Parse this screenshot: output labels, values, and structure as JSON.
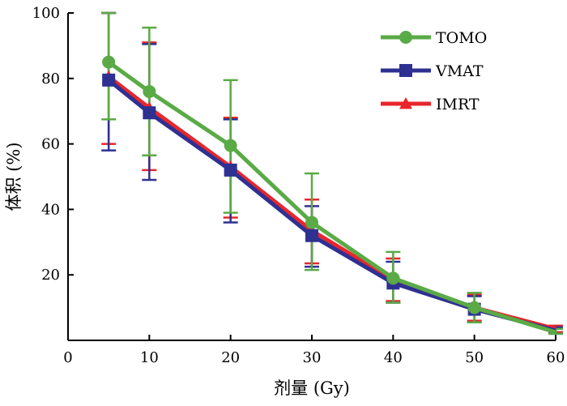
{
  "chart_data": {
    "type": "line",
    "xlabel": "剂量 (Gy)",
    "ylabel": "体积 (%)",
    "xlim": [
      0,
      60
    ],
    "ylim": [
      0,
      100
    ],
    "xticks": [
      0,
      10,
      20,
      30,
      40,
      50,
      60
    ],
    "yticks": [
      20,
      40,
      60,
      80,
      100
    ],
    "x": [
      5,
      10,
      20,
      30,
      40,
      50,
      60
    ],
    "legend_position": "top-right",
    "grid": false,
    "series": [
      {
        "name": "IMRT",
        "color": "#e8262c",
        "marker": "triangle",
        "values": [
          80.5,
          71,
          53,
          33.5,
          18.5,
          10,
          3.5
        ],
        "error_low": [
          60,
          52,
          37.5,
          23.5,
          12,
          6,
          2.5
        ],
        "error_high": [
          101,
          91,
          68,
          43,
          25,
          14,
          4.5
        ]
      },
      {
        "name": "VMAT",
        "color": "#2e3192",
        "marker": "square",
        "values": [
          79.5,
          69.5,
          52,
          32,
          17.5,
          9.5,
          3
        ],
        "error_low": [
          58,
          49,
          36,
          22.5,
          11.5,
          5.5,
          2
        ],
        "error_high": [
          101,
          90.5,
          67.5,
          41,
          24,
          13.5,
          4
        ]
      },
      {
        "name": "TOMO",
        "color": "#5aaa46",
        "marker": "circle",
        "values": [
          85,
          76,
          59.5,
          36,
          19,
          10,
          2.5
        ],
        "error_low": [
          67.5,
          56.5,
          39,
          21.5,
          11.5,
          5.5,
          2
        ],
        "error_high": [
          100,
          95.5,
          79.5,
          51,
          27,
          14.5,
          3.5
        ]
      }
    ],
    "legend_order": [
      "TOMO",
      "VMAT",
      "IMRT"
    ]
  }
}
